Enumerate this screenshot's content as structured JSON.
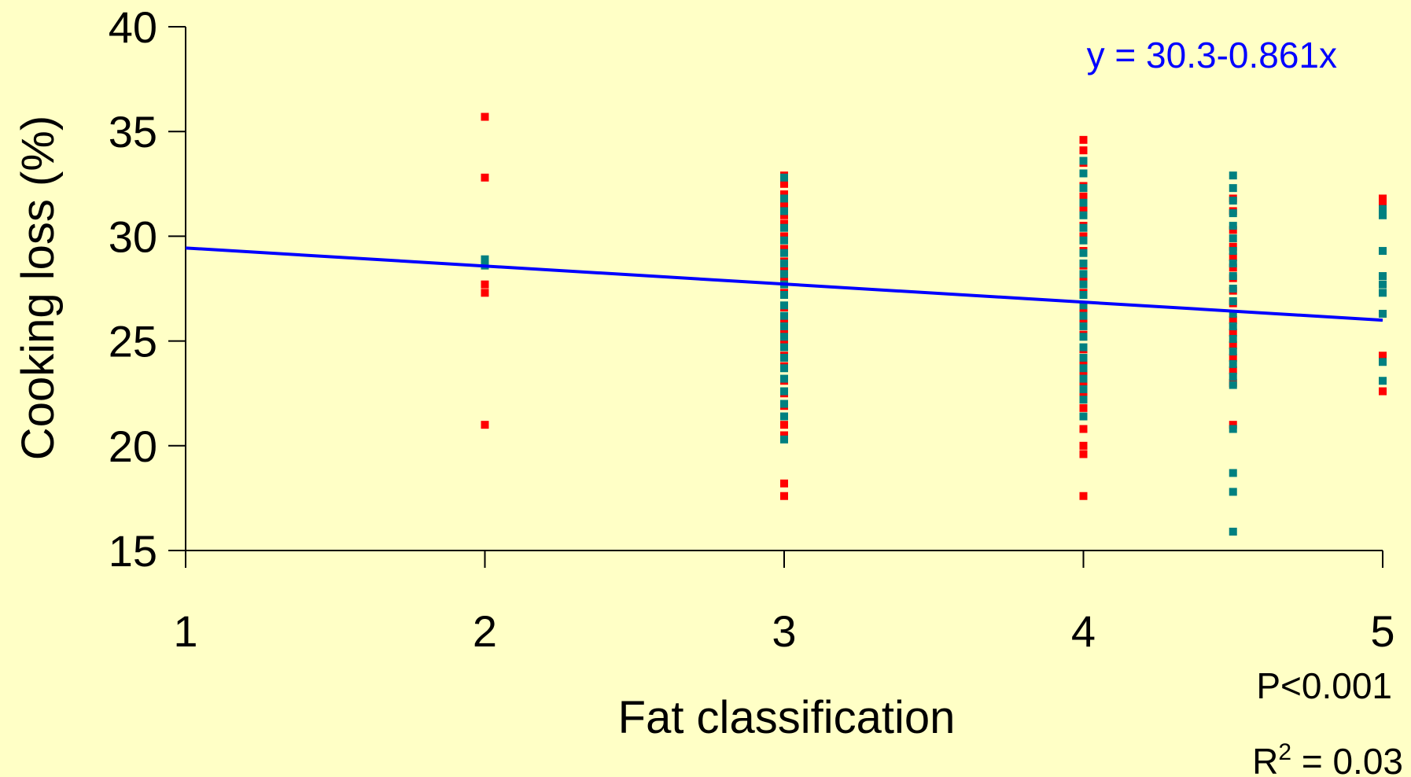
{
  "chart_data": {
    "type": "scatter",
    "xlabel": "Fat classification",
    "ylabel": "Cooking loss (%)",
    "xlim": [
      1,
      5
    ],
    "ylim": [
      15,
      40
    ],
    "xticks": [
      1,
      2,
      3,
      4,
      5
    ],
    "yticks": [
      15,
      20,
      25,
      30,
      35,
      40
    ],
    "grid": false,
    "background_color": "#FFFFC6",
    "trendline": {
      "equation_label": "y = 30.3-0.861x",
      "intercept": 30.3,
      "slope": -0.861,
      "color": "#0000FF"
    },
    "stats": {
      "p_label": "P<0.001",
      "r2_prefix": "R",
      "r2_exp": "2",
      "r2_suffix": " = 0.03"
    },
    "series": [
      {
        "color": "#FF0000",
        "points": [
          [
            2,
            35.7
          ],
          [
            2,
            32.8
          ],
          [
            2,
            27.7
          ],
          [
            2,
            27.3
          ],
          [
            2,
            21.0
          ],
          [
            3,
            32.9
          ],
          [
            3,
            32.5
          ],
          [
            3,
            32.0
          ],
          [
            3,
            31.5
          ],
          [
            3,
            31.0
          ],
          [
            3,
            30.6
          ],
          [
            3,
            30.0
          ],
          [
            3,
            29.4
          ],
          [
            3,
            28.8
          ],
          [
            3,
            28.5
          ],
          [
            3,
            28.0
          ],
          [
            3,
            27.3
          ],
          [
            3,
            26.6
          ],
          [
            3,
            26.0
          ],
          [
            3,
            25.5
          ],
          [
            3,
            25.0
          ],
          [
            3,
            24.3
          ],
          [
            3,
            23.8
          ],
          [
            3,
            23.1
          ],
          [
            3,
            22.5
          ],
          [
            3,
            21.9
          ],
          [
            3,
            21.0
          ],
          [
            3,
            20.5
          ],
          [
            3,
            18.2
          ],
          [
            3,
            17.6
          ],
          [
            4,
            34.6
          ],
          [
            4,
            34.1
          ],
          [
            4,
            33.5
          ],
          [
            4,
            32.4
          ],
          [
            4,
            31.9
          ],
          [
            4,
            31.3
          ],
          [
            4,
            30.5
          ],
          [
            4,
            30.0
          ],
          [
            4,
            29.3
          ],
          [
            4,
            28.6
          ],
          [
            4,
            28.0
          ],
          [
            4,
            27.3
          ],
          [
            4,
            26.5
          ],
          [
            4,
            25.9
          ],
          [
            4,
            25.3
          ],
          [
            4,
            24.6
          ],
          [
            4,
            24.0
          ],
          [
            4,
            23.5
          ],
          [
            4,
            23.0
          ],
          [
            4,
            22.4
          ],
          [
            4,
            21.8
          ],
          [
            4,
            20.8
          ],
          [
            4,
            20.0
          ],
          [
            4,
            19.6
          ],
          [
            4,
            17.6
          ],
          [
            4.5,
            31.8
          ],
          [
            4.5,
            31.2
          ],
          [
            4.5,
            30.3
          ],
          [
            4.5,
            29.5
          ],
          [
            4.5,
            29.0
          ],
          [
            4.5,
            28.5
          ],
          [
            4.5,
            28.0
          ],
          [
            4.5,
            27.4
          ],
          [
            4.5,
            26.8
          ],
          [
            4.5,
            26.0
          ],
          [
            4.5,
            25.4
          ],
          [
            4.5,
            24.8
          ],
          [
            4.5,
            24.2
          ],
          [
            4.5,
            23.6
          ],
          [
            4.5,
            23.0
          ],
          [
            4.5,
            21.0
          ],
          [
            5,
            31.8
          ],
          [
            5,
            31.5
          ],
          [
            5,
            24.3
          ],
          [
            5,
            22.6
          ]
        ]
      },
      {
        "color": "#008080",
        "points": [
          [
            2,
            28.9
          ],
          [
            2,
            28.6
          ],
          [
            3,
            32.8
          ],
          [
            3,
            31.8
          ],
          [
            3,
            31.2
          ],
          [
            3,
            30.4
          ],
          [
            3,
            29.8
          ],
          [
            3,
            29.2
          ],
          [
            3,
            28.7
          ],
          [
            3,
            28.2
          ],
          [
            3,
            27.7
          ],
          [
            3,
            27.2
          ],
          [
            3,
            26.7
          ],
          [
            3,
            26.2
          ],
          [
            3,
            25.7
          ],
          [
            3,
            25.2
          ],
          [
            3,
            24.7
          ],
          [
            3,
            24.2
          ],
          [
            3,
            23.7
          ],
          [
            3,
            23.2
          ],
          [
            3,
            22.6
          ],
          [
            3,
            22.0
          ],
          [
            3,
            21.4
          ],
          [
            3,
            20.3
          ],
          [
            4,
            33.6
          ],
          [
            4,
            33.0
          ],
          [
            4,
            32.3
          ],
          [
            4,
            31.6
          ],
          [
            4,
            31.0
          ],
          [
            4,
            30.4
          ],
          [
            4,
            29.8
          ],
          [
            4,
            29.2
          ],
          [
            4,
            28.7
          ],
          [
            4,
            28.2
          ],
          [
            4,
            27.7
          ],
          [
            4,
            27.2
          ],
          [
            4,
            26.7
          ],
          [
            4,
            26.2
          ],
          [
            4,
            25.7
          ],
          [
            4,
            25.2
          ],
          [
            4,
            24.7
          ],
          [
            4,
            24.2
          ],
          [
            4,
            23.7
          ],
          [
            4,
            23.2
          ],
          [
            4,
            22.7
          ],
          [
            4,
            22.2
          ],
          [
            4,
            21.4
          ],
          [
            4.5,
            32.9
          ],
          [
            4.5,
            32.3
          ],
          [
            4.5,
            31.7
          ],
          [
            4.5,
            31.1
          ],
          [
            4.5,
            30.5
          ],
          [
            4.5,
            29.9
          ],
          [
            4.5,
            29.3
          ],
          [
            4.5,
            28.7
          ],
          [
            4.5,
            28.1
          ],
          [
            4.5,
            27.5
          ],
          [
            4.5,
            26.9
          ],
          [
            4.5,
            26.3
          ],
          [
            4.5,
            25.7
          ],
          [
            4.5,
            25.1
          ],
          [
            4.5,
            24.5
          ],
          [
            4.5,
            23.9
          ],
          [
            4.5,
            23.3
          ],
          [
            4.5,
            22.9
          ],
          [
            4.5,
            20.8
          ],
          [
            4.5,
            18.7
          ],
          [
            4.5,
            17.8
          ],
          [
            4.5,
            15.9
          ],
          [
            5,
            31.3
          ],
          [
            5,
            31.0
          ],
          [
            5,
            29.3
          ],
          [
            5,
            28.1
          ],
          [
            5,
            27.7
          ],
          [
            5,
            27.3
          ],
          [
            5,
            26.3
          ],
          [
            5,
            24.0
          ],
          [
            5,
            23.1
          ]
        ]
      }
    ]
  }
}
